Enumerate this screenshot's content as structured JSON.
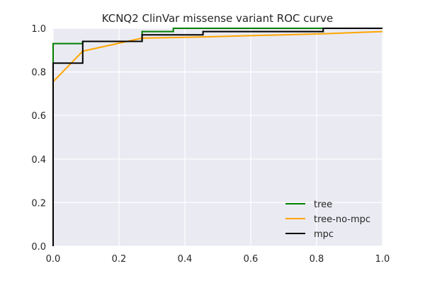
{
  "chart_data": {
    "type": "line",
    "title": "KCNQ2 ClinVar missense variant ROC curve",
    "xlabel": "",
    "ylabel": "",
    "xlim": [
      0.0,
      1.0
    ],
    "ylim": [
      0.0,
      1.0
    ],
    "xticks": [
      "0.0",
      "0.2",
      "0.4",
      "0.6",
      "0.8",
      "1.0"
    ],
    "yticks": [
      "0.0",
      "0.2",
      "0.4",
      "0.6",
      "0.8",
      "1.0"
    ],
    "grid": true,
    "legend_position": "lower-right",
    "series": [
      {
        "name": "tree",
        "color": "#008000",
        "points": [
          [
            0,
            0
          ],
          [
            0,
            0.93
          ],
          [
            0.09,
            0.93
          ],
          [
            0.09,
            0.94
          ],
          [
            0.27,
            0.94
          ],
          [
            0.27,
            0.985
          ],
          [
            0.365,
            0.985
          ],
          [
            0.365,
            1.0
          ],
          [
            1.0,
            1.0
          ]
        ]
      },
      {
        "name": "tree-no-mpc",
        "color": "#ffa500",
        "points": [
          [
            0,
            0
          ],
          [
            0,
            0.755
          ],
          [
            0.09,
            0.895
          ],
          [
            0.27,
            0.955
          ],
          [
            0.45,
            0.96
          ],
          [
            0.82,
            0.975
          ],
          [
            1.0,
            0.985
          ]
        ]
      },
      {
        "name": "mpc",
        "color": "#000000",
        "points": [
          [
            0,
            0
          ],
          [
            0,
            0.84
          ],
          [
            0.09,
            0.84
          ],
          [
            0.09,
            0.94
          ],
          [
            0.27,
            0.94
          ],
          [
            0.27,
            0.97
          ],
          [
            0.455,
            0.97
          ],
          [
            0.455,
            0.985
          ],
          [
            0.82,
            0.985
          ],
          [
            0.82,
            1.0
          ],
          [
            1.0,
            1.0
          ]
        ]
      }
    ]
  }
}
